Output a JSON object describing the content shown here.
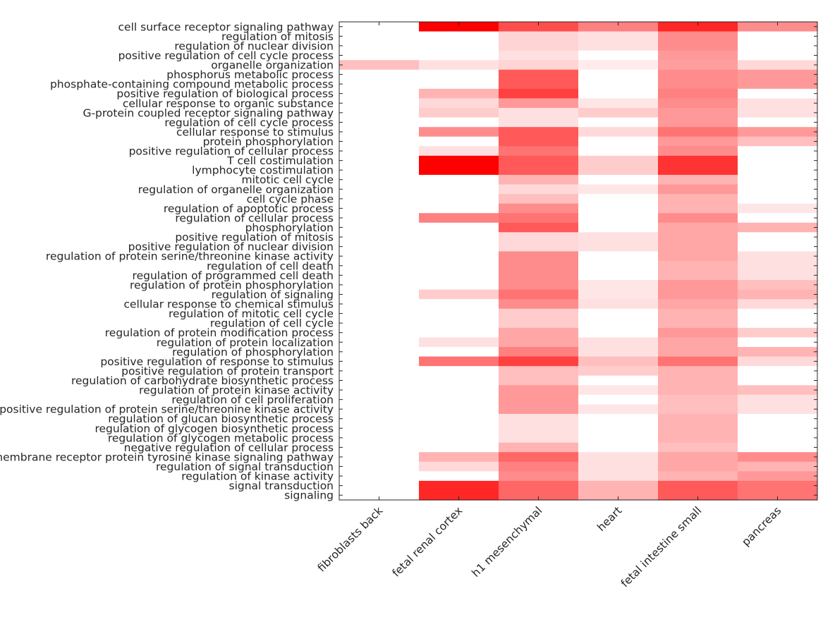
{
  "chart_data": {
    "type": "heatmap",
    "title": "",
    "xlabel": "",
    "ylabel": "",
    "value_range": [
      0,
      1
    ],
    "colormap": {
      "low": "#ffffff",
      "high": "#ff0000"
    },
    "columns": [
      "fibroblasts back",
      "fetal renal cortex",
      "h1 mesenchymal",
      "heart",
      "fetal intestine small",
      "pancreas"
    ],
    "rows": [
      "cell surface receptor signaling pathway",
      "regulation of mitosis",
      "regulation of nuclear division",
      "positive regulation of cell cycle process",
      "organelle organization",
      "phosphorus metabolic process",
      "phosphate-containing compound metabolic process",
      "positive regulation of biological process",
      "cellular response to organic substance",
      "G-protein coupled receptor signaling pathway",
      "regulation of cell cycle process",
      "cellular response to stimulus",
      "protein phosphorylation",
      "positive regulation of cellular process",
      "T cell costimulation",
      "lymphocyte costimulation",
      "mitotic cell cycle",
      "regulation of organelle organization",
      "cell cycle phase",
      "regulation of apoptotic process",
      "regulation of cellular process",
      "phosphorylation",
      "positive regulation of mitosis",
      "positive regulation of nuclear division",
      "regulation of protein serine/threonine kinase activity",
      "regulation of cell death",
      "regulation of programmed cell death",
      "regulation of protein phosphorylation",
      "regulation of signaling",
      "cellular response to chemical stimulus",
      "regulation of mitotic cell cycle",
      "regulation of cell cycle",
      "regulation of protein modification process",
      "regulation of protein localization",
      "regulation of phosphorylation",
      "positive regulation of response to stimulus",
      "positive regulation of protein transport",
      "regulation of carbohydrate biosynthetic process",
      "regulation of protein kinase activity",
      "regulation of cell proliferation",
      "positive regulation of protein serine/threonine kinase activity",
      "regulation of glucan biosynthetic process",
      "regulation of glycogen biosynthetic process",
      "regulation of glycogen metabolic process",
      "negative regulation of cellular process",
      "transmembrane receptor protein tyrosine kinase signaling pathway",
      "regulation of signal transduction",
      "regulation of kinase activity",
      "signal transduction",
      "signaling"
    ],
    "values": [
      [
        0.0,
        1.0,
        0.7,
        0.5,
        0.85,
        0.45
      ],
      [
        0.0,
        0.0,
        0.17,
        0.12,
        0.45,
        0.0
      ],
      [
        0.0,
        0.0,
        0.17,
        0.12,
        0.45,
        0.0
      ],
      [
        0.0,
        0.0,
        0.12,
        0.0,
        0.4,
        0.0
      ],
      [
        0.25,
        0.12,
        0.17,
        0.08,
        0.38,
        0.15
      ],
      [
        0.0,
        0.0,
        0.65,
        0.0,
        0.45,
        0.4
      ],
      [
        0.0,
        0.0,
        0.65,
        0.0,
        0.45,
        0.4
      ],
      [
        0.0,
        0.3,
        0.75,
        0.0,
        0.5,
        0.0
      ],
      [
        0.0,
        0.15,
        0.4,
        0.1,
        0.45,
        0.12
      ],
      [
        0.0,
        0.2,
        0.12,
        0.2,
        0.4,
        0.12
      ],
      [
        0.0,
        0.0,
        0.12,
        0.0,
        0.4,
        0.0
      ],
      [
        0.0,
        0.45,
        0.65,
        0.15,
        0.55,
        0.4
      ],
      [
        0.0,
        0.0,
        0.65,
        0.0,
        0.4,
        0.25
      ],
      [
        0.0,
        0.12,
        0.55,
        0.0,
        0.45,
        0.0
      ],
      [
        0.0,
        1.0,
        0.65,
        0.2,
        0.8,
        0.0
      ],
      [
        0.0,
        1.0,
        0.65,
        0.2,
        0.8,
        0.0
      ],
      [
        0.0,
        0.0,
        0.3,
        0.0,
        0.3,
        0.0
      ],
      [
        0.0,
        0.0,
        0.15,
        0.1,
        0.4,
        0.0
      ],
      [
        0.0,
        0.0,
        0.25,
        0.0,
        0.3,
        0.0
      ],
      [
        0.0,
        0.0,
        0.45,
        0.0,
        0.3,
        0.1
      ],
      [
        0.0,
        0.5,
        0.55,
        0.0,
        0.45,
        0.0
      ],
      [
        0.0,
        0.0,
        0.65,
        0.0,
        0.35,
        0.3
      ],
      [
        0.0,
        0.0,
        0.15,
        0.12,
        0.35,
        0.0
      ],
      [
        0.0,
        0.0,
        0.15,
        0.12,
        0.35,
        0.0
      ],
      [
        0.0,
        0.0,
        0.45,
        0.0,
        0.35,
        0.12
      ],
      [
        0.0,
        0.0,
        0.45,
        0.0,
        0.3,
        0.12
      ],
      [
        0.0,
        0.0,
        0.45,
        0.0,
        0.3,
        0.12
      ],
      [
        0.0,
        0.0,
        0.45,
        0.1,
        0.4,
        0.25
      ],
      [
        0.0,
        0.2,
        0.55,
        0.1,
        0.4,
        0.3
      ],
      [
        0.0,
        0.0,
        0.45,
        0.12,
        0.35,
        0.15
      ],
      [
        0.0,
        0.0,
        0.2,
        0.0,
        0.3,
        0.0
      ],
      [
        0.0,
        0.0,
        0.2,
        0.0,
        0.3,
        0.0
      ],
      [
        0.0,
        0.0,
        0.35,
        0.0,
        0.4,
        0.2
      ],
      [
        0.0,
        0.12,
        0.35,
        0.12,
        0.35,
        0.0
      ],
      [
        0.0,
        0.0,
        0.5,
        0.12,
        0.35,
        0.3
      ],
      [
        0.0,
        0.55,
        0.75,
        0.25,
        0.55,
        0.15
      ],
      [
        0.0,
        0.0,
        0.25,
        0.2,
        0.3,
        0.0
      ],
      [
        0.0,
        0.0,
        0.25,
        0.0,
        0.3,
        0.0
      ],
      [
        0.0,
        0.0,
        0.4,
        0.1,
        0.3,
        0.25
      ],
      [
        0.0,
        0.0,
        0.4,
        0.0,
        0.25,
        0.12
      ],
      [
        0.0,
        0.0,
        0.4,
        0.1,
        0.25,
        0.12
      ],
      [
        0.0,
        0.0,
        0.12,
        0.0,
        0.3,
        0.0
      ],
      [
        0.0,
        0.0,
        0.12,
        0.0,
        0.3,
        0.0
      ],
      [
        0.0,
        0.0,
        0.12,
        0.0,
        0.3,
        0.0
      ],
      [
        0.0,
        0.0,
        0.3,
        0.0,
        0.25,
        0.0
      ],
      [
        0.0,
        0.3,
        0.6,
        0.12,
        0.35,
        0.45
      ],
      [
        0.0,
        0.15,
        0.5,
        0.12,
        0.35,
        0.3
      ],
      [
        0.0,
        0.0,
        0.45,
        0.12,
        0.3,
        0.4
      ],
      [
        0.0,
        0.85,
        0.6,
        0.3,
        0.65,
        0.55
      ],
      [
        0.0,
        0.85,
        0.6,
        0.3,
        0.65,
        0.55
      ]
    ],
    "grid": false,
    "legend": "none"
  }
}
